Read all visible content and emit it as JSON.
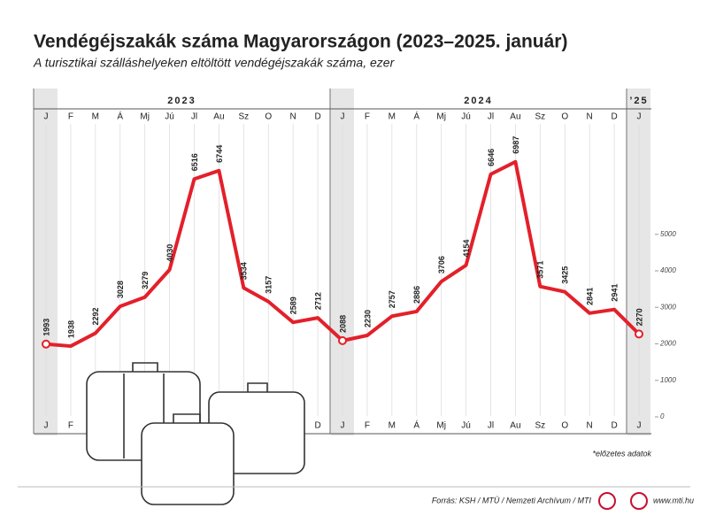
{
  "chart_data": {
    "type": "line",
    "title": "Vendégéjszakák száma Magyarországon (2023–2025. január)",
    "subtitle": "A turisztikai szálláshelyeken eltöltött vendégéjszakák száma, ezer",
    "categories": [
      "J",
      "F",
      "M",
      "Á",
      "Mj",
      "Jú",
      "Jl",
      "Au",
      "Sz",
      "O",
      "N",
      "D",
      "J",
      "F",
      "M",
      "Á",
      "Mj",
      "Jú",
      "Jl",
      "Au",
      "Sz",
      "O",
      "N",
      "D",
      "J"
    ],
    "years": [
      "2023",
      "2024",
      "’25"
    ],
    "values": [
      1993,
      1938,
      2292,
      3028,
      3279,
      4030,
      6516,
      6744,
      3534,
      3157,
      2589,
      2712,
      2088,
      2230,
      2757,
      2886,
      3706,
      4154,
      6646,
      6987,
      3571,
      3425,
      2841,
      2941,
      2270
    ],
    "color": "#e3202a",
    "ylim": [
      0,
      8000
    ],
    "yticks": [
      0,
      1000,
      2000,
      3000,
      4000,
      5000
    ],
    "footnote": "*előzetes adatok",
    "source": "Forrás: KSH / MTÜ / Nemzeti Archívum / MTI",
    "website": "www.mti.hu"
  }
}
